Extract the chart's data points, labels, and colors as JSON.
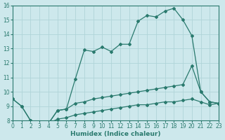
{
  "xlabel": "Humidex (Indice chaleur)",
  "xlim": [
    0,
    23
  ],
  "ylim": [
    8,
    16
  ],
  "xticks": [
    0,
    1,
    2,
    3,
    4,
    5,
    6,
    7,
    8,
    9,
    10,
    11,
    12,
    13,
    14,
    15,
    16,
    17,
    18,
    19,
    20,
    21,
    22,
    23
  ],
  "yticks": [
    8,
    9,
    10,
    11,
    12,
    13,
    14,
    15,
    16
  ],
  "line_color": "#2a7a6e",
  "bg_color": "#cde8ec",
  "grid_color": "#b0d4d8",
  "curve1_x": [
    0,
    1,
    2,
    3,
    4,
    5,
    6,
    7,
    8,
    9,
    10,
    11,
    12,
    13,
    14,
    15,
    16,
    17,
    18,
    19,
    20,
    21,
    22,
    23
  ],
  "curve1_y": [
    9.5,
    9.0,
    8.0,
    7.7,
    7.8,
    8.7,
    8.8,
    9.2,
    9.3,
    9.5,
    9.6,
    9.7,
    9.8,
    9.9,
    10.0,
    10.1,
    10.2,
    10.3,
    10.4,
    10.5,
    11.8,
    10.0,
    9.3,
    9.2
  ],
  "curve2_x": [
    0,
    1,
    2,
    3,
    4,
    5,
    6,
    7,
    8,
    9,
    10,
    11,
    12,
    13,
    14,
    15,
    16,
    17,
    18,
    19,
    20,
    21,
    22,
    23
  ],
  "curve2_y": [
    9.5,
    9.0,
    8.0,
    7.7,
    7.8,
    8.1,
    8.2,
    8.4,
    8.5,
    8.6,
    8.7,
    8.8,
    8.9,
    9.0,
    9.1,
    9.1,
    9.2,
    9.3,
    9.3,
    9.4,
    9.5,
    9.3,
    9.1,
    9.2
  ],
  "curve3_x": [
    2,
    3,
    4,
    5,
    6,
    7,
    8,
    9,
    10,
    11,
    12,
    13,
    14,
    15,
    16,
    17,
    18,
    19,
    20,
    21,
    22,
    23
  ],
  "curve3_y": [
    8.0,
    7.7,
    7.8,
    8.7,
    8.8,
    10.9,
    12.9,
    12.8,
    13.1,
    12.8,
    13.3,
    13.3,
    14.9,
    15.3,
    15.2,
    15.6,
    15.8,
    15.0,
    13.9,
    10.0,
    9.3,
    9.2
  ],
  "marker": "D",
  "marker_size": 2.0,
  "linewidth": 0.9
}
